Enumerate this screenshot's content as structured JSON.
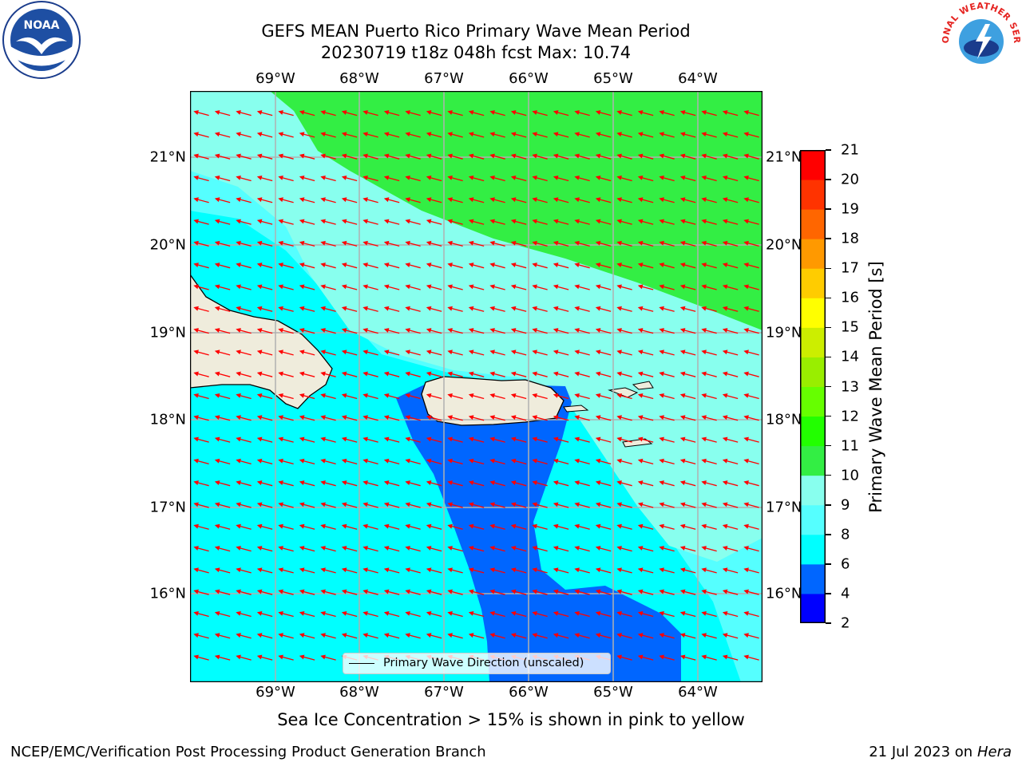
{
  "header": {
    "title_line1": "GEFS MEAN Puerto Rico Primary Wave Mean Period",
    "title_line2": "20230719 t18z 048h fcst   Max: 10.74"
  },
  "map": {
    "lon_labels": [
      "69°W",
      "68°W",
      "67°W",
      "66°W",
      "65°W",
      "64°W"
    ],
    "lat_labels": [
      "21°N",
      "20°N",
      "19°N",
      "18°N",
      "17°N",
      "16°N"
    ],
    "land_color": "#efecdc",
    "ocean_color": "#00ffff",
    "arrow_color": "#ff0000",
    "arrow_direction": "west-southwest"
  },
  "legend": {
    "label": "Primary Wave Direction (unscaled)"
  },
  "colorbar": {
    "title": "Primary Wave Mean Period [s]",
    "labels": [
      "21",
      "20",
      "19",
      "18",
      "17",
      "16",
      "15",
      "14",
      "13",
      "12",
      "11",
      "10",
      "9",
      "8",
      "6",
      "4",
      "2"
    ],
    "colors_bottom_to_top": [
      "#0000ff",
      "#0066ff",
      "#00ffff",
      "#55ffff",
      "#88ffee",
      "#33ee44",
      "#22ff00",
      "#66ff00",
      "#99ee00",
      "#ccee00",
      "#ffff00",
      "#ffcc00",
      "#ff9900",
      "#ff6600",
      "#ff3300",
      "#ff0000"
    ]
  },
  "caption": "Sea Ice Concentration > 15% is shown in pink to yellow",
  "footer": {
    "left": "NCEP/EMC/Verification Post Processing Product Generation Branch",
    "right_prefix": "21 Jul 2023 on",
    "right_host": "Hera"
  },
  "logos": {
    "left": "NOAA",
    "right": "NATIONAL WEATHER SERVICE"
  }
}
